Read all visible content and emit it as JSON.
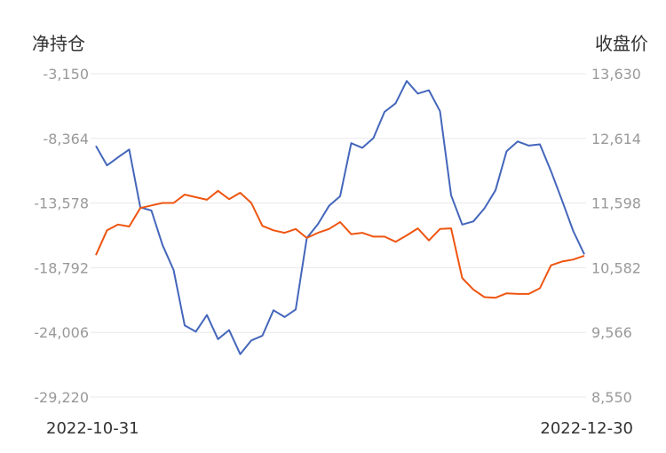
{
  "chart_data": {
    "type": "line",
    "left_axis_title": "净持仓",
    "right_axis_title": "收盘价",
    "x_start_label": "2022-10-31",
    "x_end_label": "2022-12-30",
    "left_ticks": [
      "-3,150",
      "-8,364",
      "-13,578",
      "-18,792",
      "-24,006",
      "-29,220"
    ],
    "right_ticks": [
      "13,630",
      "12,614",
      "11,598",
      "10,582",
      "9,566",
      "8,550"
    ],
    "left_range": [
      -29220,
      -3150
    ],
    "right_range": [
      8550,
      13630
    ],
    "grid": true,
    "series": [
      {
        "axis": "left",
        "color": "#4466bb",
        "values": [
          -8967,
          -10540,
          -9889,
          -9259,
          -13920,
          -14180,
          -16960,
          -18980,
          -23450,
          -23950,
          -22610,
          -24550,
          -23820,
          -25760,
          -24660,
          -24270,
          -22220,
          -22770,
          -22160,
          -16400,
          -15280,
          -13810,
          -13030,
          -8752,
          -9126,
          -8342,
          -6229,
          -5536,
          -3737,
          -4754,
          -4482,
          -6174,
          -12950,
          -15310,
          -15060,
          -14010,
          -12550,
          -9393,
          -8613,
          -8946,
          -8844,
          -11010,
          -13380,
          -15830,
          -17710
        ]
      },
      {
        "axis": "right",
        "color": "#ee5511",
        "values": [
          10780,
          11170,
          11260,
          11230,
          11520,
          11560,
          11600,
          11600,
          11730,
          11690,
          11650,
          11790,
          11660,
          11760,
          11600,
          11240,
          11170,
          11130,
          11190,
          11050,
          11130,
          11190,
          11300,
          11110,
          11130,
          11070,
          11070,
          10990,
          11090,
          11200,
          11010,
          11190,
          11200,
          10420,
          10240,
          10120,
          10110,
          10180,
          10170,
          10170,
          10260,
          10620,
          10680,
          10710,
          10770
        ]
      }
    ]
  }
}
